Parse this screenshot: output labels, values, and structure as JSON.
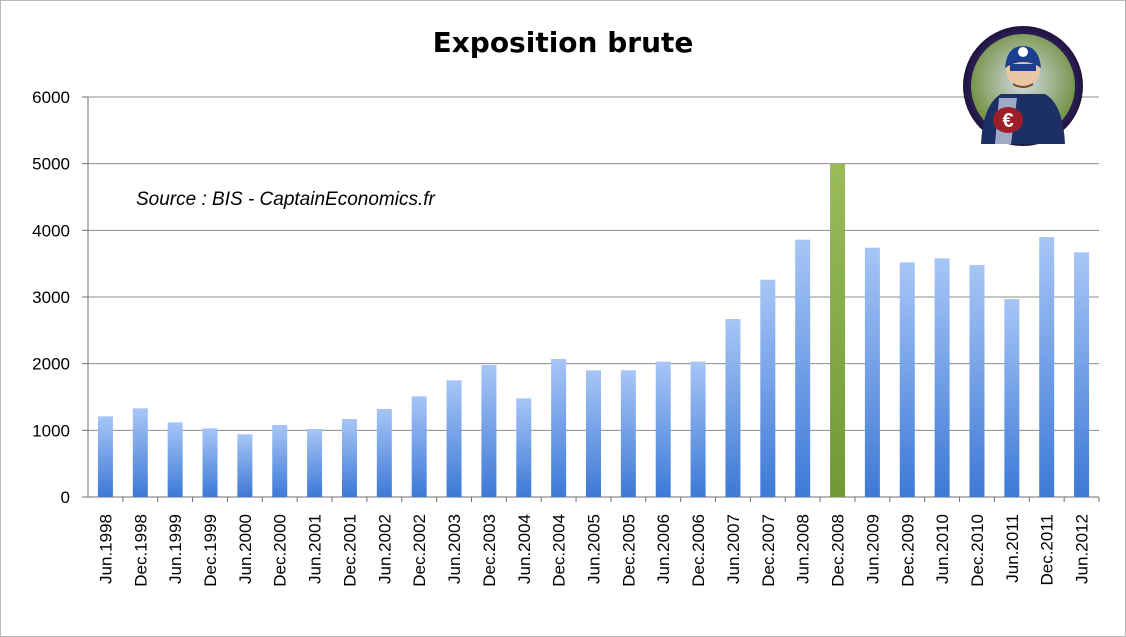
{
  "chart_data": {
    "type": "bar",
    "title": "Exposition brute",
    "annotation": "Source : BIS - CaptainEconomics.fr",
    "xlabel": "",
    "ylabel": "",
    "ylim": [
      0,
      6000
    ],
    "yticks": [
      0,
      1000,
      2000,
      3000,
      4000,
      5000,
      6000
    ],
    "grid": true,
    "legend": "none",
    "categories": [
      "Jun.1998",
      "Dec.1998",
      "Jun.1999",
      "Dec.1999",
      "Jun.2000",
      "Dec.2000",
      "Jun.2001",
      "Dec.2001",
      "Jun.2002",
      "Dec.2002",
      "Jun.2003",
      "Dec.2003",
      "Jun.2004",
      "Dec.2004",
      "Jun.2005",
      "Dec.2005",
      "Jun.2006",
      "Dec.2006",
      "Jun.2007",
      "Dec.2007",
      "Jun.2008",
      "Dec.2008",
      "Jun.2009",
      "Dec.2009",
      "Jun.2010",
      "Dec.2010",
      "Jun.2011",
      "Dec.2011",
      "Jun.2012"
    ],
    "values": [
      1210,
      1330,
      1120,
      1030,
      940,
      1080,
      1020,
      1170,
      1320,
      1510,
      1750,
      1980,
      1480,
      2070,
      1900,
      1900,
      2030,
      2030,
      2670,
      3260,
      3860,
      5000,
      3740,
      3520,
      3580,
      3480,
      2970,
      3900,
      3670
    ],
    "highlight_category": "Dec.2008",
    "colors": {
      "bar_top": "#a7c6f6",
      "bar_bottom": "#3d79d6",
      "highlight_top": "#9bbb59",
      "highlight_bottom": "#6f9a36",
      "grid": "#8c8c8c",
      "axis": "#6f6f6f"
    }
  },
  "mascot": {
    "icon": "captain-economics-euro-hero-logo"
  }
}
